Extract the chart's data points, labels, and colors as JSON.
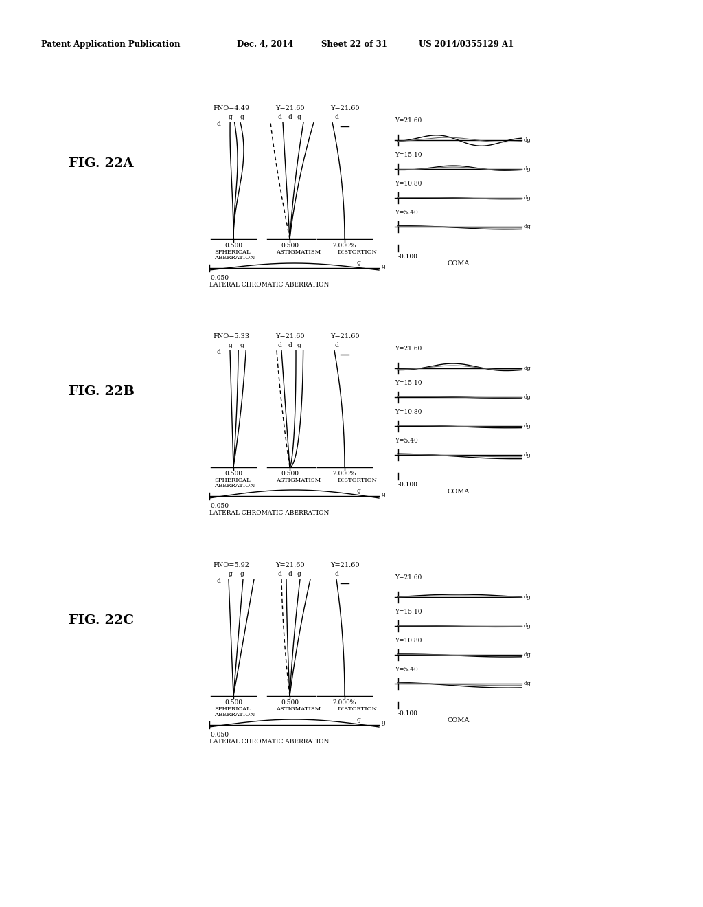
{
  "background_color": "#ffffff",
  "header_text": "Patent Application Publication",
  "header_date": "Dec. 4, 2014",
  "header_sheet": "Sheet 22 of 31",
  "header_patent": "US 2014/0355129 A1",
  "figures": [
    {
      "label": "FIG. 22A",
      "fno": "FNO=4.49",
      "y_sph": "Y=21.60",
      "y_ast": "Y=21.60",
      "y_dst": "Y=21.60"
    },
    {
      "label": "FIG. 22B",
      "fno": "FNO=5.33",
      "y_sph": "Y=21.60",
      "y_ast": "Y=21.60",
      "y_dst": "Y=21.60"
    },
    {
      "label": "FIG. 22C",
      "fno": "FNO=5.92",
      "y_sph": "Y=21.60",
      "y_ast": "Y=21.60",
      "y_dst": "Y=21.60"
    }
  ],
  "coma_labels": [
    "Y=21.60",
    "Y=15.10",
    "Y=10.80",
    "Y=5.40"
  ],
  "sph_bottom_label": "0.500",
  "ast_bottom_label": "0.500",
  "dst_bottom_label": "2.000%",
  "coma_bottom_label": "-0.100",
  "lca_left_label": "-0.050",
  "lca_bottom_text": "LATERAL CHROMATIC ABERRATION"
}
